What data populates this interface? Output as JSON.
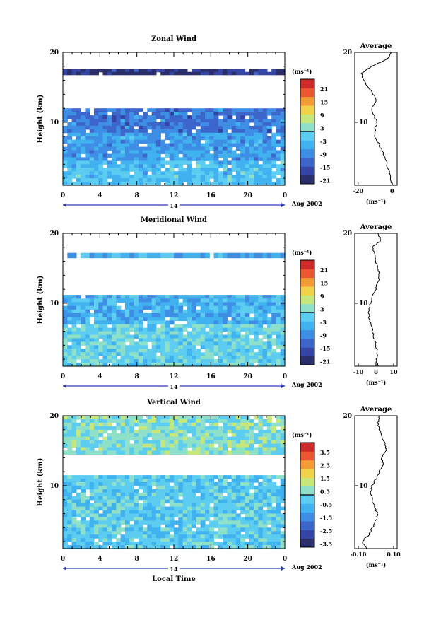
{
  "height_label": "Height (km)",
  "xlabel": "Local Time",
  "date_label": "Aug 2002",
  "day_label": "14",
  "x_ticks": [
    "0",
    "4",
    "8",
    "12",
    "16",
    "20",
    "0"
  ],
  "y_ticks": [
    "20",
    "10"
  ],
  "unit_label": "(ms⁻¹)",
  "average_title": "Average",
  "colors": {
    "scale": [
      "#2a2f6b",
      "#3545a6",
      "#3d66cc",
      "#3f8ee6",
      "#41b2f0",
      "#5ccdf0",
      "#8fe0c8",
      "#c7e77a",
      "#f1d34a",
      "#f39b35",
      "#ec5630",
      "#cf2a2a"
    ],
    "panel_background": "#ffffff",
    "frame": "#000000"
  },
  "chart_data": [
    {
      "type": "heatmap",
      "title": "Zonal Wind",
      "xlabel": "",
      "ylabel": "Height (km)",
      "xlim": [
        0,
        24
      ],
      "ylim": [
        1,
        20
      ],
      "x_ticks": [
        "0",
        "4",
        "8",
        "12",
        "16",
        "20",
        "0"
      ],
      "y_ticks": [
        "20",
        "10"
      ],
      "colorbar": {
        "unit": "(ms⁻¹)",
        "ticks": [
          "21",
          "15",
          "9",
          "3",
          "-3",
          "-9",
          "-15",
          "-21"
        ],
        "range": [
          -24,
          24
        ]
      },
      "layers": [
        {
          "height_km": [
            16.8,
            17.6
          ],
          "value": -20
        },
        {
          "height_km": [
            12.0,
            8.5
          ],
          "value": -12
        },
        {
          "height_km": [
            8.5,
            4.5
          ],
          "value": -8
        },
        {
          "height_km": [
            4.5,
            1.0
          ],
          "value": -4
        }
      ],
      "average_profile": {
        "title": "Average",
        "xlabel": "(ms⁻¹)",
        "x_ticks": [
          "-20",
          "0"
        ],
        "xlim": [
          -22,
          3
        ],
        "height_km": [
          1,
          2,
          3,
          4,
          5,
          6,
          7,
          8,
          9,
          10,
          11,
          12,
          13,
          14,
          15,
          16,
          17,
          18,
          19,
          20
        ],
        "values": [
          0,
          -1,
          -2,
          -3,
          -4,
          -6,
          -8,
          -10,
          -10,
          -9,
          -11,
          -12,
          -9,
          -11,
          -14,
          -17,
          -18,
          -12,
          -3,
          0
        ]
      }
    },
    {
      "type": "heatmap",
      "title": "Meridional Wind",
      "xlabel": "",
      "ylabel": "Height (km)",
      "xlim": [
        0,
        24
      ],
      "ylim": [
        1,
        20
      ],
      "x_ticks": [
        "0",
        "4",
        "8",
        "12",
        "16",
        "20",
        "0"
      ],
      "y_ticks": [
        "20",
        "10"
      ],
      "colorbar": {
        "unit": "(ms⁻¹)",
        "ticks": [
          "21",
          "15",
          "9",
          "3",
          "-3",
          "-9",
          "-15",
          "-21"
        ],
        "range": [
          -24,
          24
        ]
      },
      "layers": [
        {
          "height_km": [
            16.5,
            17.2
          ],
          "value": -6
        },
        {
          "height_km": [
            11.2,
            7.0
          ],
          "value": -6
        },
        {
          "height_km": [
            7.0,
            1.0
          ],
          "value": -1
        }
      ],
      "average_profile": {
        "title": "Average",
        "xlabel": "(ms⁻¹)",
        "x_ticks": [
          "-10",
          "0",
          "10"
        ],
        "xlim": [
          -12,
          12
        ],
        "height_km": [
          1,
          2,
          3,
          4,
          5,
          6,
          7,
          8,
          9,
          10,
          11,
          12,
          13,
          14,
          15,
          16,
          17,
          18,
          19,
          20
        ],
        "values": [
          1,
          0,
          1,
          0,
          -1,
          -2,
          -3,
          -4,
          -4,
          -3,
          -2,
          0,
          1,
          2,
          1,
          0,
          -1,
          -2,
          3,
          1
        ]
      }
    },
    {
      "type": "heatmap",
      "title": "Vertical Wind",
      "xlabel": "Local Time",
      "ylabel": "Height (km)",
      "xlim": [
        0,
        24
      ],
      "ylim": [
        1,
        20
      ],
      "x_ticks": [
        "0",
        "4",
        "8",
        "12",
        "16",
        "20",
        "0"
      ],
      "y_ticks": [
        "20",
        "10"
      ],
      "colorbar": {
        "unit": "(ms⁻¹)",
        "ticks": [
          "3.5",
          "2.5",
          "1.5",
          "0.5",
          "-0.5",
          "-1.5",
          "-2.5",
          "-3.5"
        ],
        "range": [
          -4,
          4
        ]
      },
      "layers": [
        {
          "height_km": [
            20,
            14.5
          ],
          "value": 0.2
        },
        {
          "height_km": [
            11.5,
            1.0
          ],
          "value": -0.4
        }
      ],
      "average_profile": {
        "title": "Average",
        "xlabel": "(ms⁻¹)",
        "x_ticks": [
          "-0.10",
          "0.10"
        ],
        "xlim": [
          -0.12,
          0.12
        ],
        "height_km": [
          1,
          2,
          3,
          4,
          5,
          6,
          7,
          8,
          9,
          10,
          11,
          12,
          13,
          14,
          15,
          16,
          17,
          18,
          19,
          20
        ],
        "values": [
          -0.05,
          -0.08,
          -0.04,
          -0.02,
          0.0,
          0.01,
          -0.01,
          -0.02,
          -0.03,
          -0.02,
          0.0,
          0.02,
          0.04,
          0.03,
          0.06,
          0.05,
          0.03,
          0.02,
          0.01,
          0.02
        ]
      }
    }
  ]
}
